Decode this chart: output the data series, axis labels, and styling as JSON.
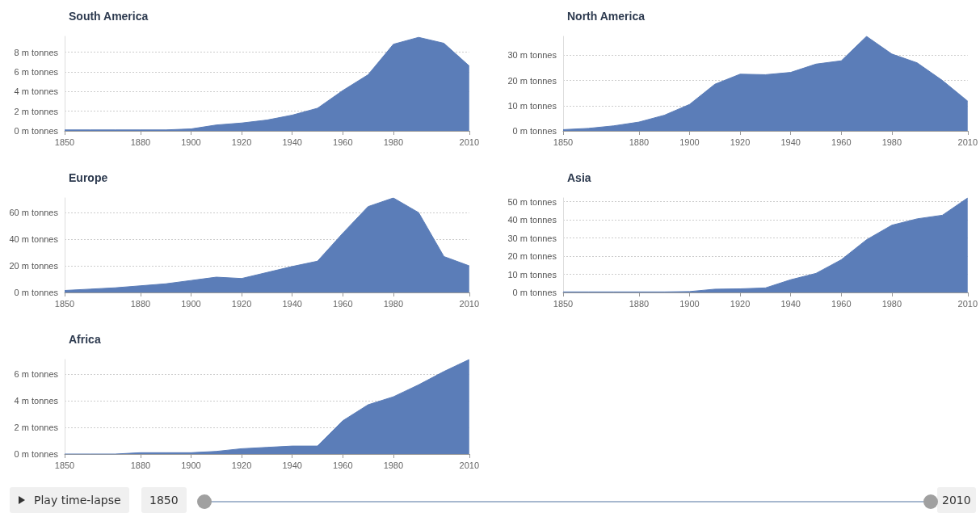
{
  "chart_data": [
    {
      "type": "area",
      "title": "South America",
      "x": [
        1850,
        1860,
        1870,
        1880,
        1890,
        1900,
        1910,
        1920,
        1930,
        1940,
        1950,
        1960,
        1970,
        1980,
        1990,
        2000,
        2010
      ],
      "values": [
        0.1,
        0.1,
        0.1,
        0.1,
        0.1,
        0.2,
        0.6,
        0.8,
        1.1,
        1.6,
        2.3,
        4.1,
        5.7,
        8.8,
        9.5,
        8.9,
        6.6
      ],
      "color": "#5b7db8",
      "xlim": [
        1850,
        2010
      ],
      "xticks": [
        1850,
        1880,
        1900,
        1920,
        1940,
        1960,
        1980,
        2010
      ],
      "ylim": [
        0,
        9.6
      ],
      "yticks": [
        {
          "value": 0,
          "label": "0 m tonnes"
        },
        {
          "value": 2,
          "label": "2 m tonnes"
        },
        {
          "value": 4,
          "label": "4 m tonnes"
        },
        {
          "value": 6,
          "label": "6 m tonnes"
        },
        {
          "value": 8,
          "label": "8 m tonnes"
        }
      ],
      "grid": "y"
    },
    {
      "type": "area",
      "title": "North America",
      "x": [
        1850,
        1860,
        1870,
        1880,
        1890,
        1900,
        1910,
        1920,
        1930,
        1940,
        1950,
        1960,
        1970,
        1980,
        1990,
        2000,
        2010
      ],
      "values": [
        0.5,
        1,
        2,
        3.5,
        6.2,
        10.5,
        18.5,
        22.5,
        22.3,
        23.2,
        26.5,
        27.8,
        37.5,
        30.5,
        27,
        20,
        11.8
      ],
      "color": "#5b7db8",
      "xlim": [
        1850,
        2010
      ],
      "xticks": [
        1850,
        1880,
        1900,
        1920,
        1940,
        1960,
        1980,
        2010
      ],
      "ylim": [
        0,
        37.5
      ],
      "yticks": [
        {
          "value": 0,
          "label": "0 m tonnes"
        },
        {
          "value": 10,
          "label": "10 m tonnes"
        },
        {
          "value": 20,
          "label": "20 m tonnes"
        },
        {
          "value": 30,
          "label": "30 m tonnes"
        }
      ],
      "grid": "y"
    },
    {
      "type": "area",
      "title": "Europe",
      "x": [
        1850,
        1860,
        1870,
        1880,
        1890,
        1900,
        1910,
        1920,
        1930,
        1940,
        1950,
        1960,
        1970,
        1980,
        1990,
        2000,
        2010
      ],
      "values": [
        1.5,
        2.5,
        3.5,
        5,
        6.5,
        9,
        11.5,
        10.5,
        15,
        19.5,
        23.5,
        44.5,
        64.5,
        71,
        60,
        27,
        20
      ],
      "color": "#5b7db8",
      "xlim": [
        1850,
        2010
      ],
      "xticks": [
        1850,
        1880,
        1900,
        1920,
        1940,
        1960,
        1980,
        2010
      ],
      "ylim": [
        0,
        71
      ],
      "yticks": [
        {
          "value": 0,
          "label": "0 m tonnes"
        },
        {
          "value": 20,
          "label": "20 m tonnes"
        },
        {
          "value": 40,
          "label": "40 m tonnes"
        },
        {
          "value": 60,
          "label": "60 m tonnes"
        }
      ],
      "grid": "y"
    },
    {
      "type": "area",
      "title": "Asia",
      "x": [
        1850,
        1860,
        1870,
        1880,
        1890,
        1900,
        1910,
        1920,
        1930,
        1940,
        1950,
        1960,
        1970,
        1980,
        1990,
        2000,
        2010
      ],
      "values": [
        0.3,
        0.3,
        0.3,
        0.3,
        0.3,
        0.5,
        1.8,
        2,
        2.5,
        7,
        10.5,
        18,
        29,
        37,
        40.5,
        42.5,
        52
      ],
      "color": "#5b7db8",
      "xlim": [
        1850,
        2010
      ],
      "xticks": [
        1850,
        1880,
        1900,
        1920,
        1940,
        1960,
        1980,
        2010
      ],
      "ylim": [
        0,
        52
      ],
      "yticks": [
        {
          "value": 0,
          "label": "0 m tonnes"
        },
        {
          "value": 10,
          "label": "10 m tonnes"
        },
        {
          "value": 20,
          "label": "20 m tonnes"
        },
        {
          "value": 30,
          "label": "30 m tonnes"
        },
        {
          "value": 40,
          "label": "40 m tonnes"
        },
        {
          "value": 50,
          "label": "50 m tonnes"
        }
      ],
      "grid": "y"
    },
    {
      "type": "area",
      "title": "Africa",
      "x": [
        1850,
        1860,
        1870,
        1880,
        1890,
        1900,
        1910,
        1920,
        1930,
        1940,
        1950,
        1960,
        1970,
        1980,
        1990,
        2000,
        2010
      ],
      "values": [
        0,
        0,
        0,
        0.1,
        0.1,
        0.1,
        0.2,
        0.4,
        0.5,
        0.6,
        0.6,
        2.5,
        3.7,
        4.3,
        5.2,
        6.2,
        7.1
      ],
      "color": "#5b7db8",
      "xlim": [
        1850,
        2010
      ],
      "xticks": [
        1850,
        1880,
        1900,
        1920,
        1940,
        1960,
        1980,
        2010
      ],
      "ylim": [
        0,
        7.1
      ],
      "yticks": [
        {
          "value": 0,
          "label": "0 m tonnes"
        },
        {
          "value": 2,
          "label": "2 m tonnes"
        },
        {
          "value": 4,
          "label": "4 m tonnes"
        },
        {
          "value": 6,
          "label": "6 m tonnes"
        }
      ],
      "grid": "y",
      "annotations": [
        "Play time-lapse",
        "1850",
        "2010"
      ]
    }
  ]
}
